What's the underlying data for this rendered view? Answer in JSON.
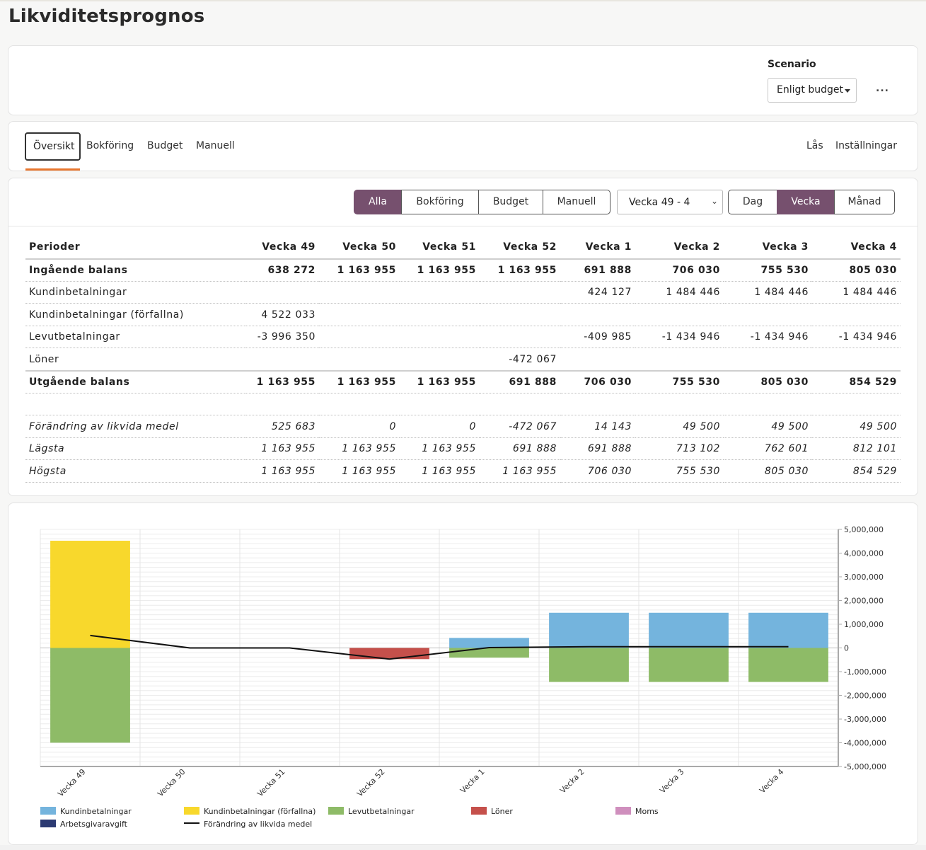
{
  "page": {
    "title": "Likviditetsprognos"
  },
  "scenario": {
    "label": "Scenario",
    "value": "Enligt budget",
    "more_label": "..."
  },
  "tabs": {
    "items": [
      "Översikt",
      "Bokföring",
      "Budget",
      "Manuell"
    ],
    "active": "Översikt",
    "right": [
      "Lås",
      "Inställningar"
    ]
  },
  "filters": {
    "sources": [
      "Alla",
      "Bokföring",
      "Budget",
      "Manuell"
    ],
    "source_active": "Alla",
    "period_range": "Vecka 49 - 4",
    "granularity": [
      "Dag",
      "Vecka",
      "Månad"
    ],
    "granularity_active": "Vecka",
    "accent_color": "#76506e"
  },
  "table": {
    "header": [
      "Perioder",
      "Vecka 49",
      "Vecka 50",
      "Vecka 51",
      "Vecka 52",
      "Vecka 1",
      "Vecka 2",
      "Vecka 3",
      "Vecka 4"
    ],
    "rows": [
      {
        "style": "bold",
        "cells": [
          "Ingående balans",
          "638 272",
          "1 163 955",
          "1 163 955",
          "1 163 955",
          "691 888",
          "706 030",
          "755 530",
          "805 030"
        ]
      },
      {
        "style": "",
        "cells": [
          "Kundinbetalningar",
          "",
          "",
          "",
          "",
          "424 127",
          "1 484 446",
          "1 484 446",
          "1 484 446"
        ]
      },
      {
        "style": "",
        "cells": [
          "Kundinbetalningar (förfallna)",
          "4 522 033",
          "",
          "",
          "",
          "",
          "",
          "",
          ""
        ]
      },
      {
        "style": "",
        "cells": [
          "Levutbetalningar",
          "-3 996 350",
          "",
          "",
          "",
          "-409 985",
          "-1 434 946",
          "-1 434 946",
          "-1 434 946"
        ]
      },
      {
        "style": "",
        "cells": [
          "Löner",
          "",
          "",
          "",
          "-472 067",
          "",
          "",
          "",
          ""
        ]
      },
      {
        "style": "bold sep",
        "cells": [
          "Utgående balans",
          "1 163 955",
          "1 163 955",
          "1 163 955",
          "691 888",
          "706 030",
          "755 530",
          "805 030",
          "854 529"
        ]
      },
      {
        "style": "blank",
        "cells": [
          "",
          "",
          "",
          "",
          "",
          "",
          "",
          "",
          ""
        ]
      },
      {
        "style": "ital",
        "cells": [
          "Förändring av likvida medel",
          "525 683",
          "0",
          "0",
          "-472 067",
          "14 143",
          "49 500",
          "49 500",
          "49 500"
        ]
      },
      {
        "style": "ital",
        "cells": [
          "Lägsta",
          "1 163 955",
          "1 163 955",
          "1 163 955",
          "691 888",
          "691 888",
          "713 102",
          "762 601",
          "812 101"
        ]
      },
      {
        "style": "ital",
        "cells": [
          "Högsta",
          "1 163 955",
          "1 163 955",
          "1 163 955",
          "1 163 955",
          "706 030",
          "755 530",
          "805 030",
          "854 529"
        ]
      }
    ]
  },
  "chart_data": {
    "type": "bar",
    "stacked": true,
    "categories": [
      "Vecka 49",
      "Vecka 50",
      "Vecka 51",
      "Vecka 52",
      "Vecka 1",
      "Vecka 2",
      "Vecka 3",
      "Vecka 4"
    ],
    "series": [
      {
        "name": "Kundinbetalningar",
        "color": "#74b4dd",
        "values": [
          0,
          0,
          0,
          0,
          424127,
          1484446,
          1484446,
          1484446
        ]
      },
      {
        "name": "Kundinbetalningar (förfallna)",
        "color": "#f8d82c",
        "values": [
          4522033,
          0,
          0,
          0,
          0,
          0,
          0,
          0
        ]
      },
      {
        "name": "Levutbetalningar",
        "color": "#8ebb67",
        "values": [
          -3996350,
          0,
          0,
          0,
          -409985,
          -1434946,
          -1434946,
          -1434946
        ]
      },
      {
        "name": "Löner",
        "color": "#c5504b",
        "values": [
          0,
          0,
          0,
          -472067,
          0,
          0,
          0,
          0
        ]
      },
      {
        "name": "Moms",
        "color": "#cf8fbd",
        "values": [
          0,
          0,
          0,
          0,
          0,
          0,
          0,
          0
        ]
      },
      {
        "name": "Arbetsgivaravgift",
        "color": "#2c3a72",
        "values": [
          0,
          0,
          0,
          0,
          0,
          0,
          0,
          0
        ]
      }
    ],
    "line": {
      "name": "Förändring av likvida medel",
      "color": "#111111",
      "values": [
        525683,
        0,
        0,
        -472067,
        14143,
        49500,
        49500,
        49500
      ]
    },
    "ylim": [
      -5000000,
      5000000
    ],
    "yticks": [
      "5,000,000",
      "4,000,000",
      "3,000,000",
      "2,000,000",
      "1,000,000",
      "0",
      "-1,000,000",
      "-2,000,000",
      "-3,000,000",
      "-4,000,000",
      "-5,000,000"
    ],
    "ytick_values": [
      5000000,
      4000000,
      3000000,
      2000000,
      1000000,
      0,
      -1000000,
      -2000000,
      -3000000,
      -4000000,
      -5000000
    ],
    "y_axis_position": "right",
    "grid": true,
    "legend_position": "bottom"
  }
}
